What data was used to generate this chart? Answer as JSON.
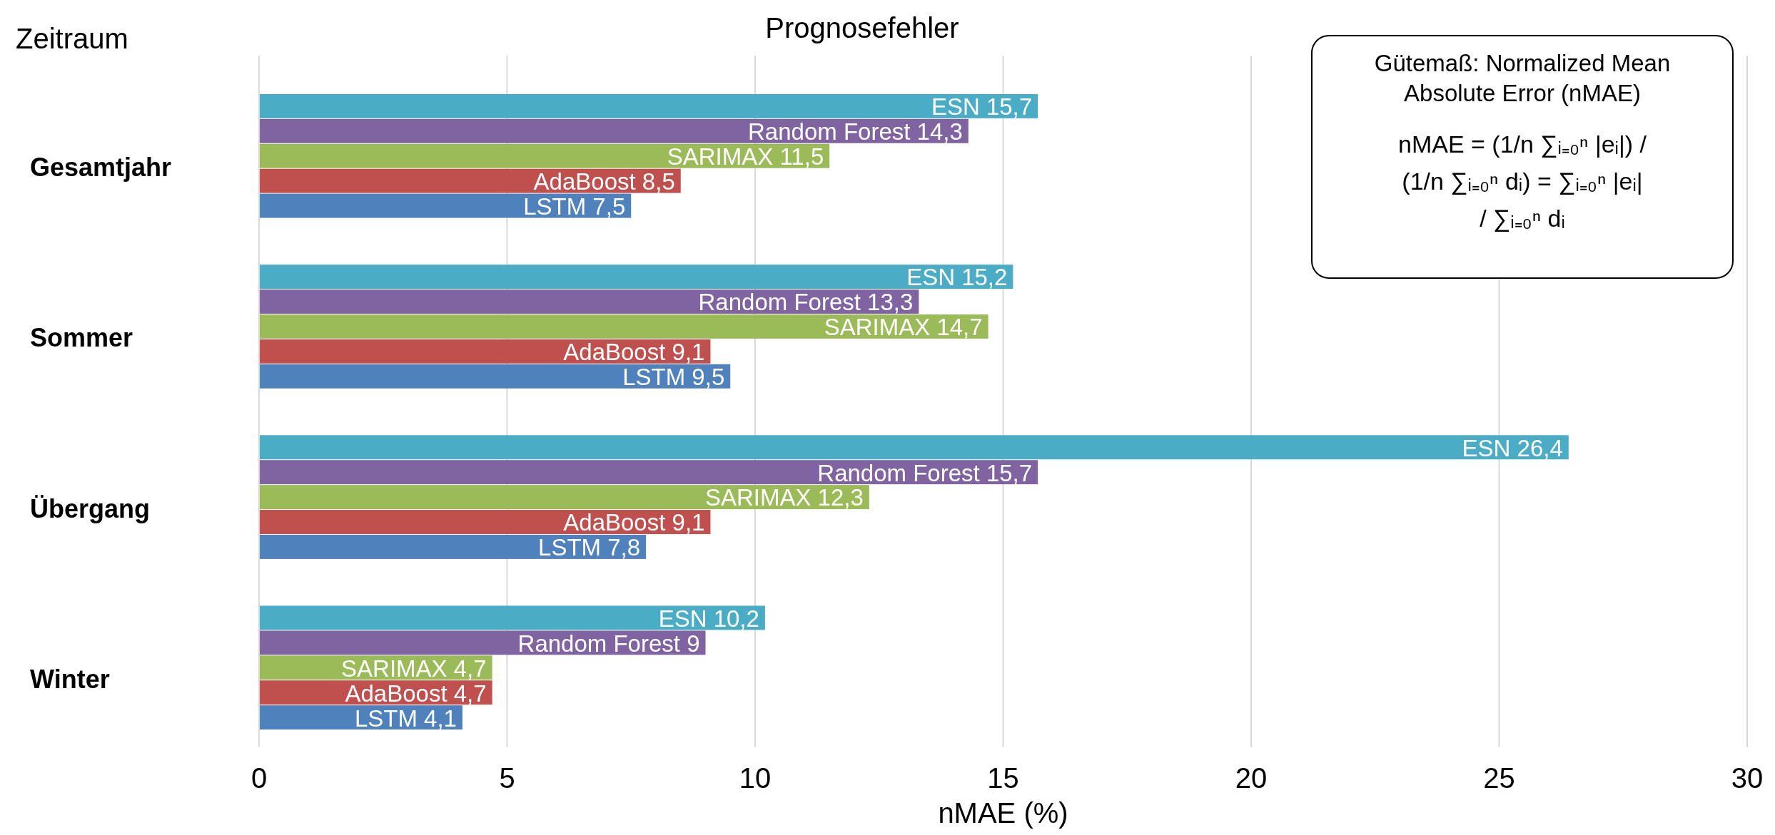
{
  "chart_data": {
    "type": "bar",
    "orientation": "horizontal",
    "title": "Prognosefehler",
    "ylabel": "Zeitraum",
    "xlabel": "nMAE (%)",
    "categories": [
      "Gesamtjahr",
      "Sommer",
      "Übergang",
      "Winter"
    ],
    "series": [
      {
        "name": "ESN",
        "color": "#4bacc6",
        "values": [
          15.7,
          15.2,
          26.4,
          10.2
        ],
        "value_labels": [
          "15,7",
          "15,2",
          "26,4",
          "10,2"
        ]
      },
      {
        "name": "Random Forest",
        "color": "#8064a2",
        "values": [
          14.3,
          13.3,
          15.7,
          9
        ],
        "value_labels": [
          "14,3",
          "13,3",
          "15,7",
          "9"
        ]
      },
      {
        "name": "SARIMAX",
        "color": "#9bbb59",
        "values": [
          11.5,
          14.7,
          12.3,
          4.7
        ],
        "value_labels": [
          "11,5",
          "14,7",
          "12,3",
          "4,7"
        ]
      },
      {
        "name": "AdaBoost",
        "color": "#c0504d",
        "values": [
          8.5,
          9.1,
          9.1,
          4.7
        ],
        "value_labels": [
          "8,5",
          "9,1",
          "9,1",
          "4,7"
        ]
      },
      {
        "name": "LSTM",
        "color": "#4f81bd",
        "values": [
          7.5,
          9.5,
          7.8,
          4.1
        ],
        "value_labels": [
          "7,5",
          "9,5",
          "7,8",
          "4,1"
        ]
      }
    ],
    "xlim": [
      0,
      30
    ],
    "xticks": [
      0,
      5,
      10,
      15,
      20,
      25,
      30
    ],
    "grid": "x",
    "annotations": [
      "Gütemaß: Normalized Mean Absolute Error (nMAE)",
      "nMAE = (1/n ∑ᵢ₌₀ⁿ |eᵢ|) / (1/n ∑ᵢ₌₀ⁿ dᵢ) = ∑ᵢ₌₀ⁿ |eᵢ| / ∑ᵢ₌₀ⁿ dᵢ"
    ]
  }
}
